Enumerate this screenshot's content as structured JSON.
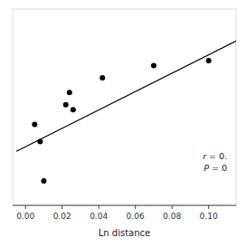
{
  "chart_data": {
    "type": "scatter",
    "xlabel": "Ln distance",
    "annotations": [
      "r = 0.",
      "P = 0"
    ],
    "series": [
      {
        "type": "scatter",
        "marker": "circle",
        "color": "#000000",
        "x": [
          0.005,
          0.008,
          0.022,
          0.024,
          0.026,
          0.042,
          0.07,
          0.1,
          0.01
        ],
        "values": [
          0.38,
          0.31,
          0.46,
          0.51,
          0.44,
          0.57,
          0.62,
          0.64,
          0.15
        ]
      },
      {
        "type": "line",
        "color": "#000000",
        "x": [
          -0.005,
          0.115
        ],
        "values": [
          0.27,
          0.72
        ]
      }
    ],
    "xlim": [
      -0.007,
      0.115
    ],
    "ylim": [
      0.05,
      0.85
    ],
    "xticks": [
      {
        "value": 0.0,
        "label": "0.00"
      },
      {
        "value": 0.02,
        "label": "0.02"
      },
      {
        "value": 0.04,
        "label": "0.04"
      },
      {
        "value": 0.06,
        "label": "0.06"
      },
      {
        "value": 0.08,
        "label": "0.08"
      },
      {
        "value": 0.1,
        "label": "0.10"
      }
    ],
    "tick_labels": "x"
  }
}
